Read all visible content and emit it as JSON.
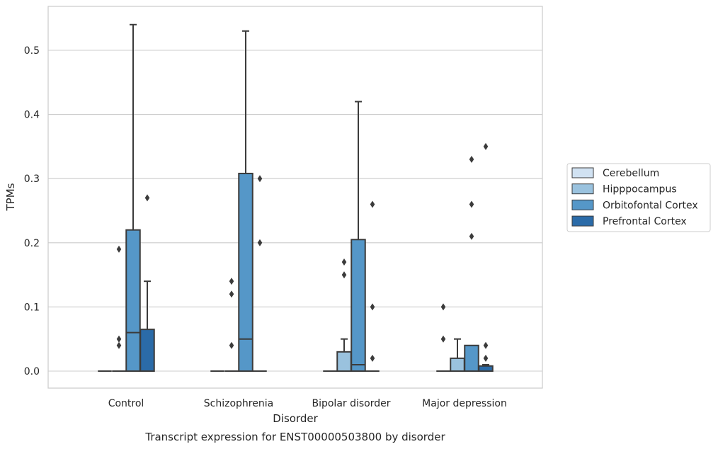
{
  "chart_data": {
    "type": "box",
    "caption": "Transcript expression for ENST00000503800 by disorder",
    "xlabel": "Disorder",
    "ylabel": "TPMs",
    "ylim": [
      -0.026,
      0.568
    ],
    "yticks": [
      "0.0",
      "0.1",
      "0.2",
      "0.3",
      "0.4",
      "0.5"
    ],
    "ytick_values": [
      0.0,
      0.1,
      0.2,
      0.3,
      0.4,
      0.5
    ],
    "grid": "horizontal",
    "legend_position": "outside-right",
    "categories": [
      "Control",
      "Schizophrenia",
      "Bipolar disorder",
      "Major depression"
    ],
    "series": [
      {
        "name": "Cerebellum",
        "color": "#d1e2f2",
        "boxes": [
          {
            "q1": 0,
            "median": 0,
            "q3": 0,
            "whisker_low": 0,
            "whisker_high": 0,
            "outliers": []
          },
          {
            "q1": 0,
            "median": 0,
            "q3": 0,
            "whisker_low": 0,
            "whisker_high": 0,
            "outliers": []
          },
          {
            "q1": 0,
            "median": 0,
            "q3": 0,
            "whisker_low": 0,
            "whisker_high": 0,
            "outliers": []
          },
          {
            "q1": 0,
            "median": 0,
            "q3": 0,
            "whisker_low": 0,
            "whisker_high": 0,
            "outliers": []
          }
        ]
      },
      {
        "name": "Hipppocampus",
        "color": "#9ac2de",
        "boxes": [
          {
            "q1": 0,
            "median": 0,
            "q3": 0,
            "whisker_low": 0,
            "whisker_high": 0,
            "outliers": [
              0.19,
              0.05,
              0.04
            ]
          },
          {
            "q1": 0,
            "median": 0,
            "q3": 0,
            "whisker_low": 0,
            "whisker_high": 0,
            "outliers": [
              0.14,
              0.12,
              0.04
            ]
          },
          {
            "q1": 0,
            "median": 0,
            "q3": 0.03,
            "whisker_low": 0,
            "whisker_high": 0.05,
            "outliers": [
              0.17,
              0.15
            ]
          },
          {
            "q1": 0,
            "median": 0,
            "q3": 0.02,
            "whisker_low": 0,
            "whisker_high": 0.05,
            "outliers": []
          }
        ]
      },
      {
        "name": "Orbitofontal Cortex",
        "color": "#5597c8",
        "boxes": [
          {
            "q1": 0,
            "median": 0.06,
            "q3": 0.22,
            "whisker_low": 0,
            "whisker_high": 0.54,
            "outliers": []
          },
          {
            "q1": 0,
            "median": 0.05,
            "q3": 0.308,
            "whisker_low": 0,
            "whisker_high": 0.53,
            "outliers": []
          },
          {
            "q1": 0,
            "median": 0.01,
            "q3": 0.205,
            "whisker_low": 0,
            "whisker_high": 0.42,
            "outliers": []
          },
          {
            "q1": 0,
            "median": 0,
            "q3": 0.04,
            "whisker_low": 0,
            "whisker_high": 0.04,
            "outliers": [
              0.33,
              0.26,
              0.21
            ]
          }
        ]
      },
      {
        "name": "Prefrontal Cortex",
        "color": "#2b6ba8",
        "boxes": [
          {
            "q1": 0,
            "median": 0,
            "q3": 0.065,
            "whisker_low": 0,
            "whisker_high": 0.14,
            "outliers": [
              0.27
            ]
          },
          {
            "q1": 0,
            "median": 0,
            "q3": 0,
            "whisker_low": 0,
            "whisker_high": 0,
            "outliers": [
              0.3,
              0.2
            ]
          },
          {
            "q1": 0,
            "median": 0,
            "q3": 0,
            "whisker_low": 0,
            "whisker_high": 0,
            "outliers": [
              0.26,
              0.1,
              0.02
            ]
          },
          {
            "q1": 0,
            "median": 0,
            "q3": 0.008,
            "whisker_low": 0,
            "whisker_high": 0.01,
            "outliers": [
              0.35,
              0.04,
              0.02
            ]
          }
        ]
      }
    ],
    "hue_extra_outliers": [
      {
        "category_index": 3,
        "series_index": 1,
        "x_offset_series": 0,
        "values": [
          0.1,
          0.05
        ]
      }
    ]
  }
}
